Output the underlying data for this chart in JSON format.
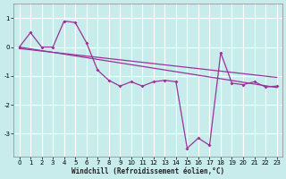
{
  "xlabel": "Windchill (Refroidissement éolien,°C)",
  "bg_color": "#c8ecec",
  "grid_color": "#ffffff",
  "line_color": "#993399",
  "x_hours": [
    0,
    1,
    2,
    3,
    4,
    5,
    6,
    7,
    8,
    9,
    10,
    11,
    12,
    13,
    14,
    15,
    16,
    17,
    18,
    19,
    20,
    21,
    22,
    23
  ],
  "series1": [
    0.0,
    0.5,
    0.0,
    0.0,
    0.9,
    0.85,
    0.15,
    -0.8,
    -1.15,
    -1.35,
    -1.2,
    -1.35,
    -1.2,
    -1.15,
    -1.2,
    -3.5,
    -3.15,
    -3.4,
    -0.2,
    -1.25,
    -1.3,
    -1.2,
    -1.38,
    -1.35
  ],
  "trend1_x": [
    0,
    23
  ],
  "trend1_y": [
    0.0,
    -1.4
  ],
  "trend2_x": [
    0,
    23
  ],
  "trend2_y": [
    -0.05,
    -1.05
  ],
  "ylim": [
    -3.8,
    1.5
  ],
  "yticks": [
    -3,
    -2,
    -1,
    0,
    1
  ],
  "xlim": [
    -0.5,
    23.5
  ],
  "xlabel_fontsize": 5.5,
  "tick_fontsize": 5.0
}
